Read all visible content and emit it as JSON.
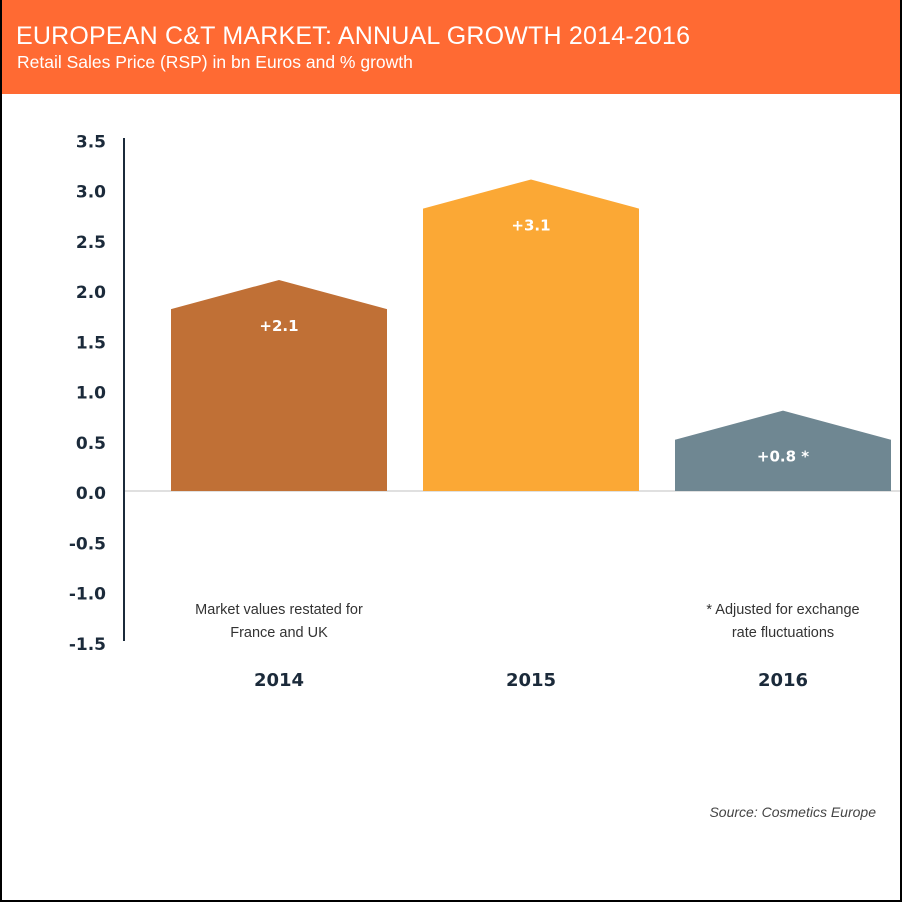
{
  "header": {
    "title": "EUROPEAN C&T MARKET: ANNUAL GROWTH 2014-2016",
    "subtitle": "Retail Sales Price (RSP) in bn Euros and % growth"
  },
  "source": "Source: Cosmetics Europe",
  "colors": {
    "header_bg": "#ff6a33",
    "axis": "#1b2a3a",
    "zero_line": "#e0e0e0"
  },
  "chart_data": {
    "type": "bar",
    "title": "EUROPEAN C&T MARKET: ANNUAL GROWTH 2014-2016",
    "subtitle": "Retail Sales Price (RSP) in bn Euros and % growth",
    "xlabel": "",
    "ylabel": "",
    "categories": [
      "2014",
      "2015",
      "2016"
    ],
    "values": [
      2.1,
      3.1,
      0.8
    ],
    "data_labels": [
      "+2.1",
      "+3.1",
      "+0.8 *"
    ],
    "bar_colors": [
      "#c07036",
      "#fba835",
      "#6f8792"
    ],
    "ylim": [
      -1.5,
      3.5
    ],
    "yticks": [
      3.5,
      3.0,
      2.5,
      2.0,
      1.5,
      1.0,
      0.5,
      0.0,
      -0.5,
      -1.0,
      -1.5
    ],
    "ytick_labels": [
      "3.5",
      "3.0",
      "2.5",
      "2.0",
      "1.5",
      "1.0",
      "0.5",
      "0.0",
      "-0.5",
      "-1.0",
      "-1.5"
    ],
    "grid": false,
    "legend": "none",
    "annotations": [
      {
        "category": "2014",
        "lines": [
          "Market values restated for",
          "France and UK"
        ]
      },
      {
        "category": "2016",
        "lines": [
          "* Adjusted for exchange",
          "rate fluctuations"
        ]
      }
    ],
    "source": "Source: Cosmetics Europe"
  }
}
